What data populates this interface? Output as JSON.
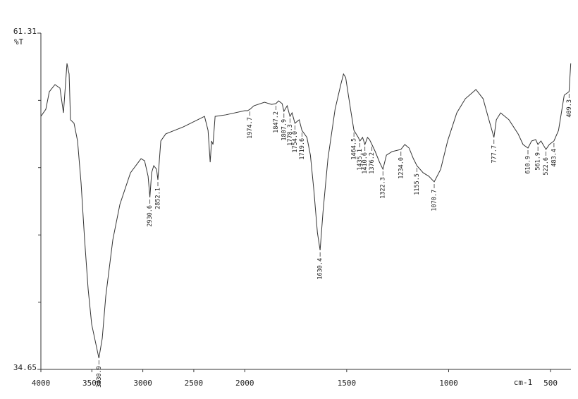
{
  "chart_data": {
    "type": "line",
    "y_label": "%T",
    "x_label": "cm-1",
    "xlim": [
      4000,
      400
    ],
    "x_scale_change": {
      "at": 2000,
      "factor": 2
    },
    "xticks": [
      4000,
      3500,
      3000,
      2500,
      2000,
      1500,
      1000,
      500
    ],
    "ylim": [
      34.65,
      61.31
    ],
    "yticks": [
      61.31,
      34.65
    ],
    "yminorticks": [
      55.98,
      50.65,
      45.31,
      39.98
    ],
    "x": [
      4000,
      3951.6,
      3917,
      3861.6,
      3813,
      3778.6,
      3744,
      3723.2,
      3709.4,
      3674.8,
      3640.2,
      3605.6,
      3571,
      3536.4,
      3501.8,
      3430.9,
      3398,
      3363.4,
      3294.2,
      3225,
      3121,
      3017.4,
      2982.8,
      2948.2,
      2930.6,
      2913.6,
      2892.8,
      2865,
      2852.1,
      2823.6,
      2775,
      2602,
      2394.6,
      2360,
      2339.2,
      2325.4,
      2311.5,
      2290.8,
      2187,
      2000,
      1986,
      1974.7,
      1955,
      1903,
      1868.5,
      1847.2,
      1834,
      1816.6,
      1807.9,
      1792,
      1778.3,
      1768,
      1754,
      1733,
      1719.6,
      1695,
      1678,
      1661,
      1643.6,
      1630.4,
      1616,
      1592,
      1557,
      1529,
      1515.6,
      1505,
      1481,
      1464.5,
      1443,
      1435.1,
      1422,
      1410.6,
      1398,
      1388,
      1376.2,
      1360,
      1339,
      1322.3,
      1305,
      1277,
      1234,
      1215,
      1194,
      1173,
      1155.5,
      1125,
      1097,
      1070.7,
      1039,
      1005,
      960,
      918,
      866,
      831,
      807,
      777.7,
      766,
      745,
      704,
      659,
      635,
      610.9,
      593,
      573,
      561.9,
      547,
      522.6,
      506,
      483.4,
      461,
      433,
      409.3,
      401
    ],
    "series": [
      {
        "name": "%T",
        "color": "#333333",
        "values": [
          54.71,
          55.27,
          56.67,
          57.23,
          56.95,
          54.99,
          58.91,
          58.07,
          54.44,
          54.16,
          52.76,
          49.41,
          44.93,
          41.02,
          38.23,
          35.54,
          37.11,
          40.46,
          44.93,
          47.73,
          50.24,
          51.36,
          51.19,
          49.96,
          48.29,
          50.24,
          50.8,
          50.52,
          49.68,
          52.76,
          53.32,
          53.88,
          54.71,
          53.6,
          51.08,
          52.76,
          52.48,
          54.71,
          54.83,
          55.16,
          55.16,
          55.27,
          55.55,
          55.83,
          55.66,
          55.72,
          55.94,
          55.72,
          55.11,
          55.55,
          54.71,
          54.99,
          54.16,
          54.44,
          53.6,
          53.04,
          51.64,
          48.85,
          45.49,
          44.1,
          47.17,
          51.36,
          55.27,
          57.23,
          58.07,
          57.79,
          55.27,
          53.6,
          53.04,
          52.76,
          53.04,
          52.48,
          53.04,
          52.87,
          52.48,
          51.92,
          51.08,
          50.52,
          51.64,
          51.92,
          52.09,
          52.48,
          52.2,
          51.36,
          50.8,
          50.24,
          49.96,
          49.52,
          50.52,
          52.76,
          54.99,
          56.11,
          56.84,
          56.11,
          54.71,
          53.04,
          54.44,
          54.99,
          54.44,
          53.32,
          52.48,
          52.2,
          52.76,
          52.87,
          52.48,
          52.76,
          52.09,
          52.48,
          52.76,
          53.6,
          56.39,
          56.67,
          58.91
        ]
      }
    ],
    "peaks": [
      {
        "x": 3430.9,
        "label": "3430.9"
      },
      {
        "x": 2930.6,
        "label": "2930.6"
      },
      {
        "x": 2852.1,
        "label": "2852.1"
      },
      {
        "x": 1974.7,
        "label": "1974.7"
      },
      {
        "x": 1847.2,
        "label": "1847.2"
      },
      {
        "x": 1807.9,
        "label": "1807.9"
      },
      {
        "x": 1778.3,
        "label": "1778.3"
      },
      {
        "x": 1754.0,
        "label": "1754.0"
      },
      {
        "x": 1719.6,
        "label": "1719.6"
      },
      {
        "x": 1630.4,
        "label": "1630.4"
      },
      {
        "x": 1464.5,
        "label": "1464.5"
      },
      {
        "x": 1435.1,
        "label": "1435.1"
      },
      {
        "x": 1410.6,
        "label": "1410.6"
      },
      {
        "x": 1376.2,
        "label": "1376.2"
      },
      {
        "x": 1322.3,
        "label": "1322.3"
      },
      {
        "x": 1234.0,
        "label": "1234.0"
      },
      {
        "x": 1155.5,
        "label": "1155.5"
      },
      {
        "x": 1070.7,
        "label": "1070.7"
      },
      {
        "x": 777.7,
        "label": "777.7"
      },
      {
        "x": 610.9,
        "label": "610.9"
      },
      {
        "x": 561.9,
        "label": "561.9"
      },
      {
        "x": 522.6,
        "label": "522.6"
      },
      {
        "x": 483.4,
        "label": "483.4"
      },
      {
        "x": 409.3,
        "label": "409.3"
      }
    ]
  }
}
